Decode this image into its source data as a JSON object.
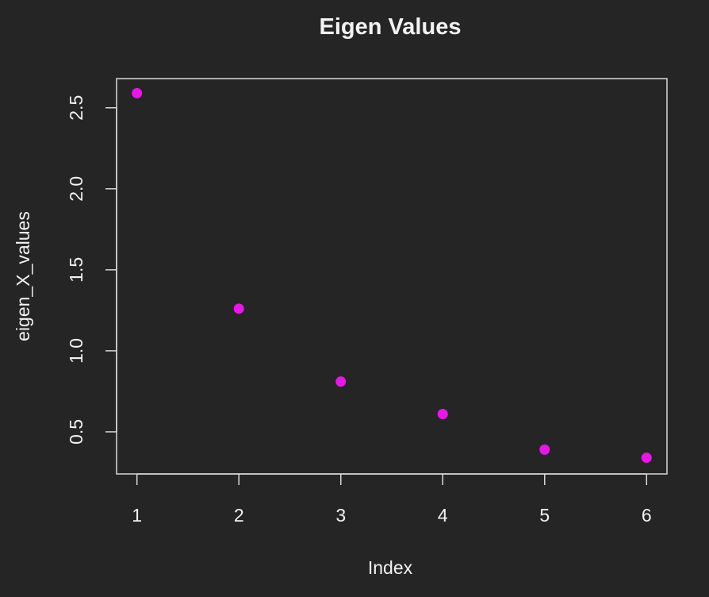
{
  "chart_data": {
    "type": "scatter",
    "title": "Eigen Values",
    "xlabel": "Index",
    "ylabel": "eigen_X_values",
    "x": [
      1,
      2,
      3,
      4,
      5,
      6
    ],
    "y": [
      2.59,
      1.26,
      0.81,
      0.61,
      0.39,
      0.34
    ],
    "xticks": [
      1,
      2,
      3,
      4,
      5,
      6
    ],
    "yticks": [
      0.5,
      1.0,
      1.5,
      2.0,
      2.5
    ],
    "ytick_labels": [
      "0.5",
      "1.0",
      "1.5",
      "2.0",
      "2.5"
    ],
    "xlim": [
      0.8,
      6.2
    ],
    "ylim": [
      0.24,
      2.68
    ],
    "grid": false,
    "point_color": "#e817e8",
    "background_color": "#252525",
    "foreground_color": "#f2f2f2"
  }
}
